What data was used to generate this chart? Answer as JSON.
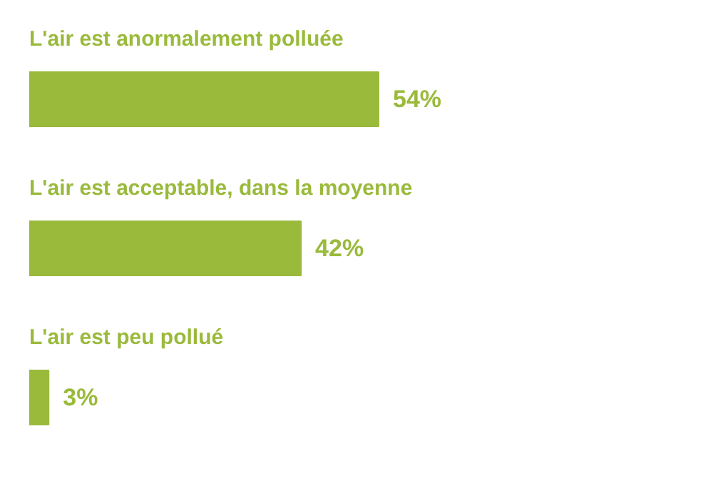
{
  "chart_data": {
    "type": "bar",
    "orientation": "horizontal",
    "categories": [
      "L'air est anormalement polluée",
      "L'air est acceptable, dans la moyenne",
      "L'air est peu pollué"
    ],
    "values": [
      54,
      42,
      3
    ],
    "color": "#9aba3b",
    "data_labels": true,
    "value_labels": [
      "54%",
      "42%",
      "3%"
    ]
  }
}
